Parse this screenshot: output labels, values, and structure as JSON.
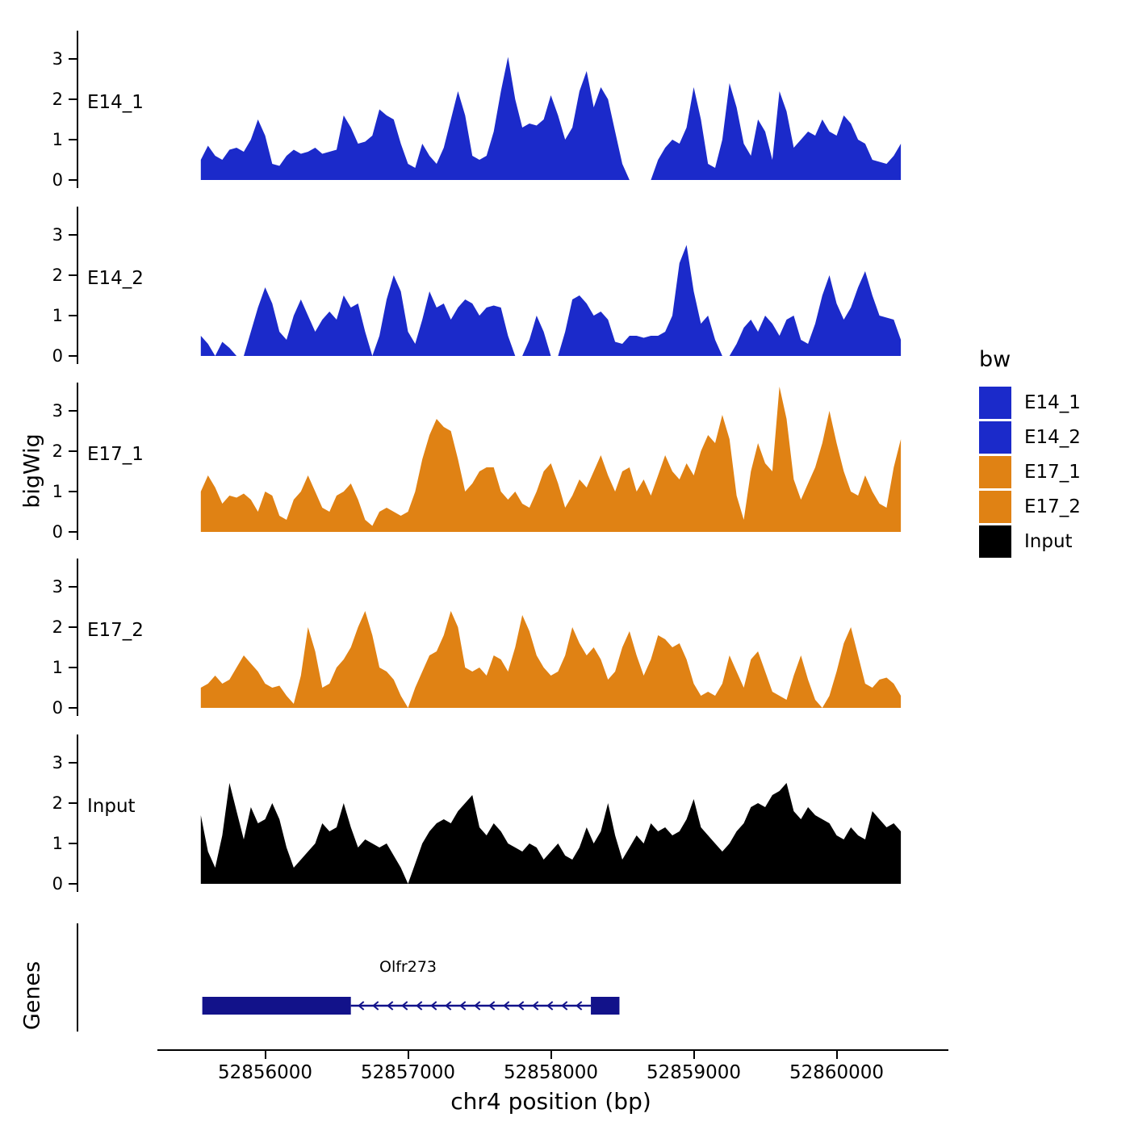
{
  "labels": {
    "ylabel_tracks": "bigWig",
    "ylabel_genes": "Genes",
    "xlabel": "chr4 position (bp)"
  },
  "legend": {
    "title": "bw",
    "items": [
      {
        "label": "E14_1",
        "color": "#1B2ACA"
      },
      {
        "label": "E14_2",
        "color": "#1B2ACA"
      },
      {
        "label": "E17_1",
        "color": "#E08214"
      },
      {
        "label": "E17_2",
        "color": "#E08214"
      },
      {
        "label": "Input",
        "color": "#000000"
      }
    ]
  },
  "chart_data": {
    "type": "area",
    "title": "",
    "xlabel": "chr4 position (bp)",
    "ylabel": "bigWig",
    "x_domain": [
      52855500,
      52860500
    ],
    "x_start": 52855550,
    "x_step": 50,
    "y_ticks": [
      0,
      1,
      2,
      3
    ],
    "ylim": [
      0,
      3.8
    ],
    "x_ticks": [
      52856000,
      52857000,
      52858000,
      52859000,
      52860000
    ],
    "tracks": [
      {
        "name": "E14_1",
        "color": "#1B2ACA",
        "values": [
          0.5,
          0.85,
          0.6,
          0.5,
          0.75,
          0.8,
          0.7,
          1.0,
          1.5,
          1.1,
          0.4,
          0.35,
          0.6,
          0.75,
          0.65,
          0.7,
          0.8,
          0.65,
          0.7,
          0.75,
          1.6,
          1.3,
          0.9,
          0.95,
          1.1,
          1.75,
          1.6,
          1.5,
          0.9,
          0.4,
          0.3,
          0.9,
          0.6,
          0.4,
          0.8,
          1.5,
          2.2,
          1.6,
          0.6,
          0.5,
          0.6,
          1.2,
          2.2,
          3.05,
          2.0,
          1.3,
          1.4,
          1.35,
          1.5,
          2.1,
          1.6,
          1.0,
          1.3,
          2.2,
          2.7,
          1.8,
          2.3,
          2.0,
          1.2,
          0.4,
          0,
          0,
          0,
          0,
          0.5,
          0.8,
          1.0,
          0.9,
          1.3,
          2.3,
          1.5,
          0.4,
          0.3,
          1.0,
          2.4,
          1.8,
          0.9,
          0.6,
          1.5,
          1.2,
          0.5,
          2.2,
          1.7,
          0.8,
          1.0,
          1.2,
          1.1,
          1.5,
          1.2,
          1.1,
          1.6,
          1.4,
          1.0,
          0.9,
          0.5,
          0.45,
          0.4,
          0.6,
          0.9
        ]
      },
      {
        "name": "E14_2",
        "color": "#1B2ACA",
        "values": [
          0.5,
          0.3,
          0,
          0.35,
          0.2,
          0,
          0,
          0.6,
          1.2,
          1.7,
          1.3,
          0.6,
          0.4,
          1.0,
          1.4,
          1.0,
          0.6,
          0.9,
          1.1,
          0.9,
          1.5,
          1.2,
          1.3,
          0.6,
          0,
          0.5,
          1.4,
          2.0,
          1.6,
          0.6,
          0.3,
          0.9,
          1.6,
          1.2,
          1.3,
          0.9,
          1.2,
          1.4,
          1.3,
          1.0,
          1.2,
          1.25,
          1.2,
          0.5,
          0,
          0,
          0.4,
          1.0,
          0.6,
          0,
          0,
          0.6,
          1.4,
          1.5,
          1.3,
          1.0,
          1.1,
          0.9,
          0.35,
          0.3,
          0.5,
          0.5,
          0.45,
          0.5,
          0.5,
          0.6,
          1.0,
          2.3,
          2.75,
          1.6,
          0.8,
          1.0,
          0.4,
          0,
          0,
          0.3,
          0.7,
          0.9,
          0.6,
          1.0,
          0.8,
          0.5,
          0.9,
          1.0,
          0.4,
          0.3,
          0.8,
          1.5,
          2.0,
          1.3,
          0.9,
          1.2,
          1.7,
          2.1,
          1.5,
          1.0,
          0.95,
          0.9,
          0.4
        ]
      },
      {
        "name": "E17_1",
        "color": "#E08214",
        "values": [
          1.0,
          1.4,
          1.1,
          0.7,
          0.9,
          0.85,
          0.95,
          0.8,
          0.5,
          1.0,
          0.9,
          0.4,
          0.3,
          0.8,
          1.0,
          1.4,
          1.0,
          0.6,
          0.5,
          0.9,
          1.0,
          1.2,
          0.8,
          0.3,
          0.15,
          0.5,
          0.6,
          0.5,
          0.4,
          0.5,
          1.0,
          1.8,
          2.4,
          2.8,
          2.6,
          2.5,
          1.8,
          1.0,
          1.2,
          1.5,
          1.6,
          1.6,
          1.0,
          0.8,
          1.0,
          0.7,
          0.6,
          1.0,
          1.5,
          1.7,
          1.2,
          0.6,
          0.9,
          1.3,
          1.1,
          1.5,
          1.9,
          1.4,
          1.0,
          1.5,
          1.6,
          1.0,
          1.3,
          0.9,
          1.4,
          1.9,
          1.5,
          1.3,
          1.7,
          1.4,
          2.0,
          2.4,
          2.2,
          2.9,
          2.3,
          0.9,
          0.3,
          1.5,
          2.2,
          1.7,
          1.5,
          3.6,
          2.8,
          1.3,
          0.8,
          1.2,
          1.6,
          2.2,
          3.0,
          2.2,
          1.5,
          1.0,
          0.9,
          1.4,
          1.0,
          0.7,
          0.6,
          1.6,
          2.3
        ]
      },
      {
        "name": "E17_2",
        "color": "#E08214",
        "values": [
          0.5,
          0.6,
          0.8,
          0.6,
          0.7,
          1.0,
          1.3,
          1.1,
          0.9,
          0.6,
          0.5,
          0.55,
          0.3,
          0.1,
          0.8,
          2.0,
          1.4,
          0.5,
          0.6,
          1.0,
          1.2,
          1.5,
          2.0,
          2.4,
          1.8,
          1.0,
          0.9,
          0.7,
          0.3,
          0,
          0.5,
          0.9,
          1.3,
          1.4,
          1.8,
          2.4,
          2.0,
          1.0,
          0.9,
          1.0,
          0.8,
          1.3,
          1.2,
          0.9,
          1.5,
          2.3,
          1.9,
          1.3,
          1.0,
          0.8,
          0.9,
          1.3,
          2.0,
          1.6,
          1.3,
          1.5,
          1.2,
          0.7,
          0.9,
          1.5,
          1.9,
          1.3,
          0.8,
          1.2,
          1.8,
          1.7,
          1.5,
          1.6,
          1.2,
          0.6,
          0.3,
          0.4,
          0.3,
          0.6,
          1.3,
          0.9,
          0.5,
          1.2,
          1.4,
          0.9,
          0.4,
          0.3,
          0.2,
          0.8,
          1.3,
          0.7,
          0.2,
          0,
          0.3,
          0.9,
          1.6,
          2.0,
          1.3,
          0.6,
          0.5,
          0.7,
          0.75,
          0.6,
          0.3
        ]
      },
      {
        "name": "Input",
        "color": "#000000",
        "values": [
          1.7,
          0.8,
          0.4,
          1.2,
          2.5,
          1.8,
          1.1,
          1.9,
          1.5,
          1.6,
          2.0,
          1.6,
          0.9,
          0.4,
          0.6,
          0.8,
          1.0,
          1.5,
          1.3,
          1.4,
          2.0,
          1.4,
          0.9,
          1.1,
          1.0,
          0.9,
          1.0,
          0.7,
          0.4,
          0,
          0.5,
          1.0,
          1.3,
          1.5,
          1.6,
          1.5,
          1.8,
          2.0,
          2.2,
          1.4,
          1.2,
          1.5,
          1.3,
          1.0,
          0.9,
          0.8,
          1.0,
          0.9,
          0.6,
          0.8,
          1.0,
          0.7,
          0.6,
          0.9,
          1.4,
          1.0,
          1.3,
          2.0,
          1.2,
          0.6,
          0.9,
          1.2,
          1.0,
          1.5,
          1.3,
          1.4,
          1.2,
          1.3,
          1.6,
          2.1,
          1.4,
          1.2,
          1.0,
          0.8,
          1.0,
          1.3,
          1.5,
          1.9,
          2.0,
          1.9,
          2.2,
          2.3,
          2.5,
          1.8,
          1.6,
          1.9,
          1.7,
          1.6,
          1.5,
          1.2,
          1.1,
          1.4,
          1.2,
          1.1,
          1.8,
          1.6,
          1.4,
          1.5,
          1.3
        ]
      }
    ],
    "gene": {
      "name": "Olfr273",
      "strand": "-",
      "color": "#12128A",
      "thick_boxes": [
        [
          52855560,
          52856600
        ],
        [
          52858280,
          52858480
        ]
      ],
      "thin_line": [
        52856600,
        52858280
      ],
      "label_position": 52857000
    }
  }
}
